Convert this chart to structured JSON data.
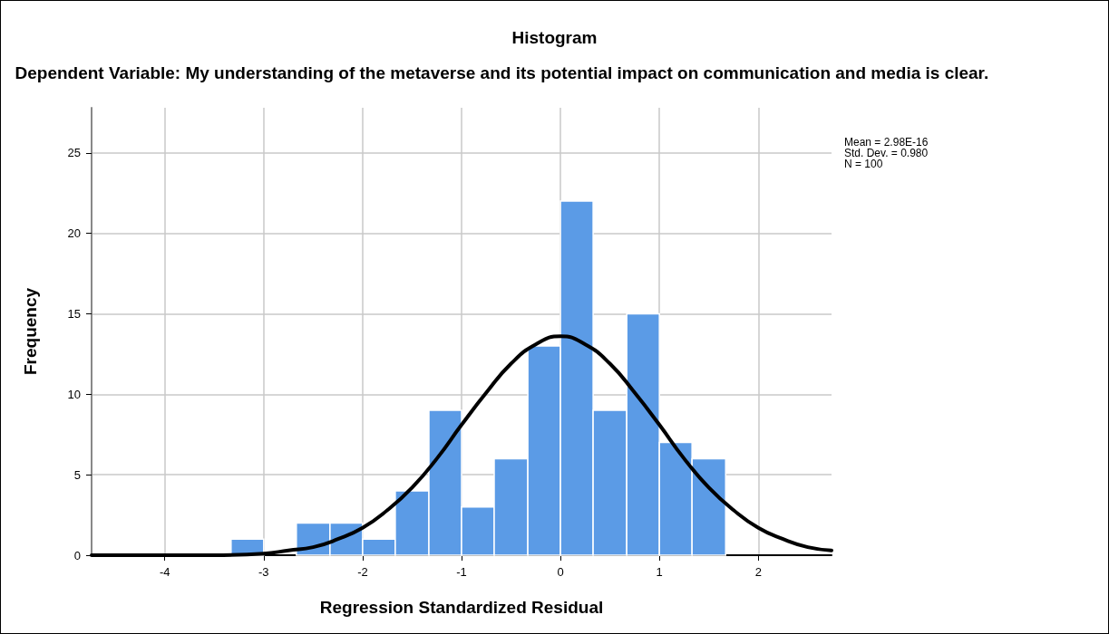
{
  "chart_data": {
    "type": "histogram",
    "title": "Histogram",
    "subtitle": "Dependent Variable: My understanding of the metaverse and its potential impact on communication and media is clear.",
    "xlabel": "Regression Standardized Residual",
    "ylabel": "Frequency",
    "bins": [
      -3.33,
      -3.0,
      -2.67,
      -2.33,
      -2.0,
      -1.67,
      -1.33,
      -1.0,
      -0.67,
      -0.33,
      0,
      0.33,
      0.67,
      1.0,
      1.33,
      1.67
    ],
    "series": [
      {
        "color": "#5b9be6",
        "values": [
          1,
          0,
          2,
          2,
          1,
          4,
          9,
          3,
          6,
          13,
          22,
          9,
          15,
          7,
          6
        ]
      },
      {
        "type": "line",
        "color": "#000000",
        "x": [
          -4.74,
          -4.5,
          -4,
          -3.5,
          -3,
          -2.75,
          -2.5,
          -2.25,
          -2,
          -1.75,
          -1.5,
          -1.25,
          -1,
          -0.75,
          -0.5,
          -0.25,
          0,
          0.25,
          0.5,
          0.75,
          1,
          1.25,
          1.5,
          1.75,
          2,
          2.25,
          2.5,
          2.74
        ],
        "values": [
          0,
          0,
          0,
          0,
          0.1,
          0.3,
          0.5,
          1.0,
          1.7,
          2.8,
          4.2,
          6.0,
          8.1,
          10.1,
          11.9,
          13.1,
          13.6,
          13.1,
          11.9,
          10.1,
          8.1,
          6.0,
          4.2,
          2.8,
          1.7,
          1.0,
          0.5,
          0.3
        ]
      }
    ],
    "annotations": [
      "Mean = 2.98E-16",
      "Std. Dev. = 0.980",
      "N = 100"
    ],
    "xlim": [
      -4.74,
      2.74
    ],
    "xticks": [
      -4,
      -3,
      -2,
      -1,
      0,
      1,
      2
    ],
    "ylim": [
      0,
      27.8
    ],
    "yticks": [
      0,
      5,
      10,
      15,
      20,
      25
    ],
    "grid": true,
    "marker": "none",
    "line_style": "solid"
  }
}
